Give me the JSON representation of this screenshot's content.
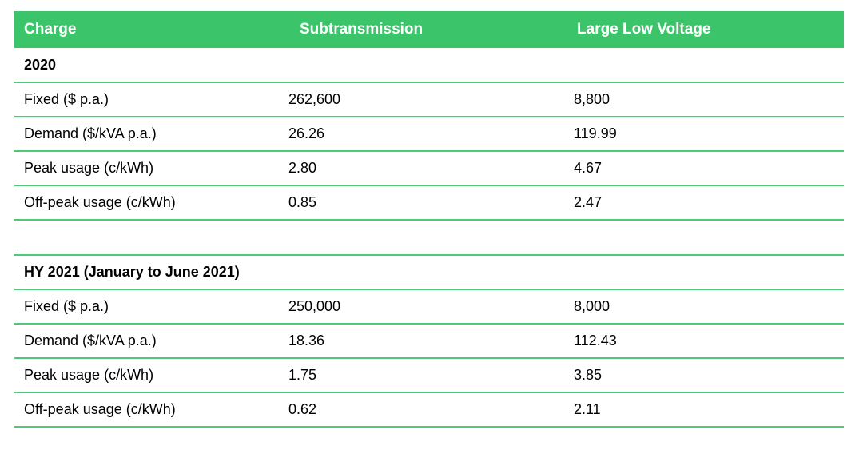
{
  "page": {
    "background": "#ffffff"
  },
  "table": {
    "columns": [
      "Charge",
      "Subtransmission",
      "Large Low Voltage"
    ],
    "colors": {
      "header_background": "#3bc46a",
      "header_text": "#ffffff",
      "row_divider": "#4cca75",
      "body_text": "#000000"
    },
    "sections": [
      {
        "title": "2020",
        "rows": [
          {
            "charge": "Fixed ($ p.a.)",
            "subtransmission": "262,600",
            "large_low_voltage": "8,800"
          },
          {
            "charge": "Demand ($/kVA p.a.)",
            "subtransmission": "26.26",
            "large_low_voltage": "119.99"
          },
          {
            "charge": "Peak usage (c/kWh)",
            "subtransmission": "2.80",
            "large_low_voltage": "4.67"
          },
          {
            "charge": "Off-peak usage (c/kWh)",
            "subtransmission": "0.85",
            "large_low_voltage": "2.47"
          }
        ]
      },
      {
        "title": "HY 2021 (January to June 2021)",
        "rows": [
          {
            "charge": "Fixed ($ p.a.)",
            "subtransmission": "250,000",
            "large_low_voltage": "8,000"
          },
          {
            "charge": "Demand ($/kVA p.a.)",
            "subtransmission": "18.36",
            "large_low_voltage": "112.43"
          },
          {
            "charge": "Peak usage (c/kWh)",
            "subtransmission": "1.75",
            "large_low_voltage": "3.85"
          },
          {
            "charge": "Off-peak usage (c/kWh)",
            "subtransmission": "0.62",
            "large_low_voltage": "2.11"
          }
        ]
      }
    ]
  }
}
